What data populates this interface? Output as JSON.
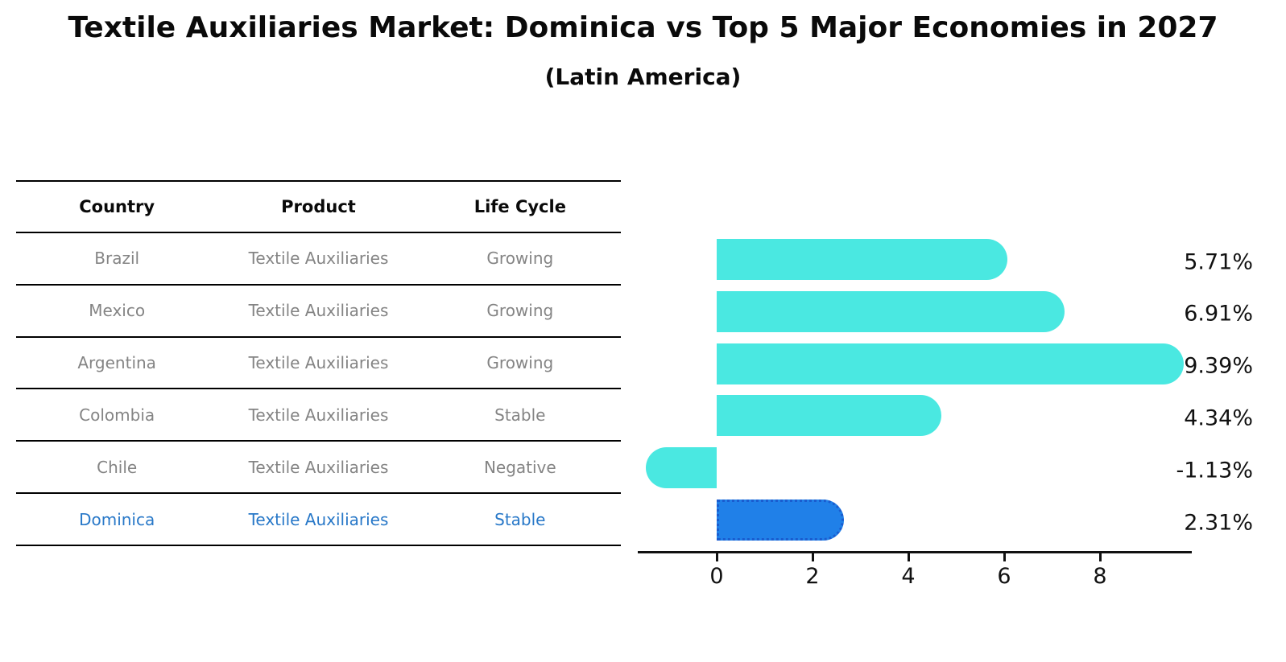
{
  "title": "Textile Auxiliaries Market: Dominica vs Top 5 Major Economies in 2027",
  "subtitle": "(Latin America)",
  "table": {
    "headers": [
      "Country",
      "Product",
      "Life Cycle"
    ],
    "rows": [
      {
        "country": "Brazil",
        "product": "Textile Auxiliaries",
        "life_cycle": "Growing",
        "highlight": false
      },
      {
        "country": "Mexico",
        "product": "Textile Auxiliaries",
        "life_cycle": "Growing",
        "highlight": false
      },
      {
        "country": "Argentina",
        "product": "Textile Auxiliaries",
        "life_cycle": "Growing",
        "highlight": false
      },
      {
        "country": "Colombia",
        "product": "Textile Auxiliaries",
        "life_cycle": "Stable",
        "highlight": false
      },
      {
        "country": "Chile",
        "product": "Textile Auxiliaries",
        "life_cycle": "Negative",
        "highlight": false
      },
      {
        "country": "Dominica",
        "product": "Textile Auxiliaries",
        "life_cycle": "Stable",
        "highlight": true
      }
    ]
  },
  "chart_data": {
    "type": "bar",
    "orientation": "horizontal",
    "title": "Textile Auxiliaries Market: Dominica vs Top 5 Major Economies in 2027",
    "subtitle": "(Latin America)",
    "categories": [
      "Brazil",
      "Mexico",
      "Argentina",
      "Colombia",
      "Chile",
      "Dominica"
    ],
    "values": [
      5.71,
      6.91,
      9.39,
      4.34,
      -1.13,
      2.31
    ],
    "value_labels": [
      "5.71%",
      "6.91%",
      "9.39%",
      "4.34%",
      "-1.13%",
      "2.31%"
    ],
    "unit": "%",
    "xlabel": "",
    "ylabel": "",
    "xticks": [
      0,
      2,
      4,
      6,
      8
    ],
    "xlim": [
      -1.66,
      9.92
    ],
    "grid": false,
    "legend": false,
    "highlight_index": 5,
    "colors": {
      "bar": "#4AE8E1",
      "highlight_bar": "#2080E8",
      "highlight_border": "#1A5CCF",
      "highlight_text": "#2878C8",
      "row_text": "#848484",
      "axis": "#111111"
    }
  }
}
